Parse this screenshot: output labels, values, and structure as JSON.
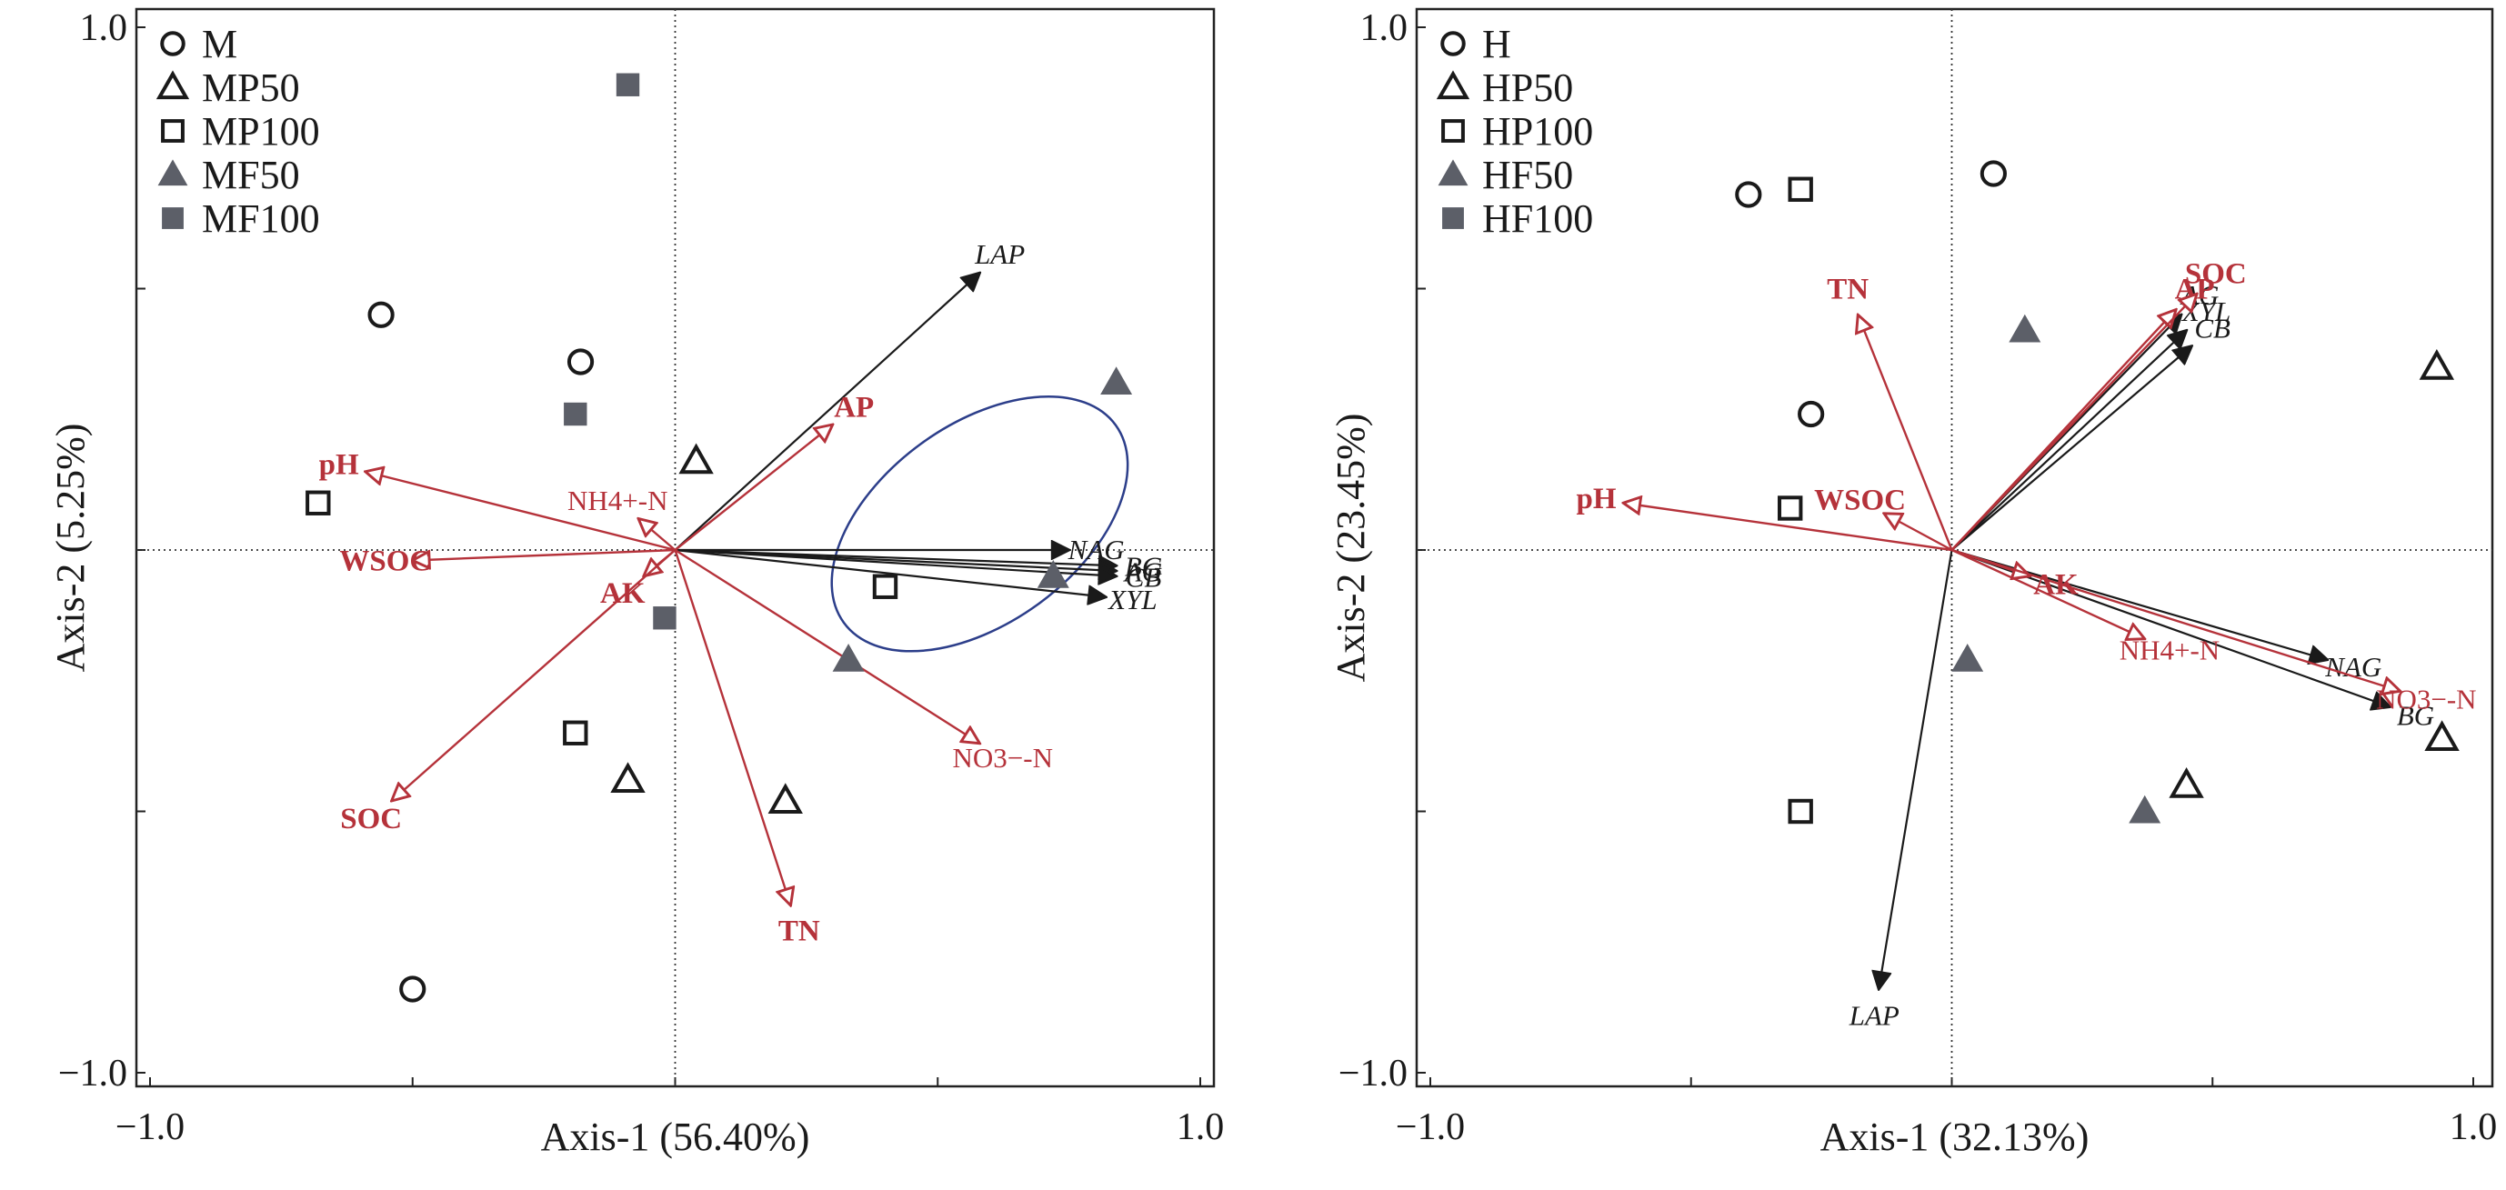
{
  "colors": {
    "env_arrow": "#b5323a",
    "enzyme_arrow": "#1a1a1a",
    "open_marker": "#1a1a1a",
    "filled_marker": "#5c5f68",
    "ellipse": "#2c3e8a",
    "frame": "#222222",
    "zero_line": "#333333"
  },
  "chart_data": [
    {
      "type": "scatter",
      "subtype": "biplot",
      "xlabel": "Axis-1 (56.40%)",
      "ylabel": "Axis-2 (5.25%)",
      "xlim": [
        -1.0,
        1.0
      ],
      "ylim": [
        -1.0,
        1.0
      ],
      "x_ticks": [
        "−1.0",
        "1.0"
      ],
      "y_ticks": [
        "1.0",
        "−1.0"
      ],
      "zero_lines": true,
      "legend_position": "top-left",
      "legend": [
        {
          "name": "M",
          "marker": "circle"
        },
        {
          "name": "MP50",
          "marker": "triangle"
        },
        {
          "name": "MP100",
          "marker": "square"
        },
        {
          "name": "MF50",
          "marker": "triangle-filled"
        },
        {
          "name": "MF100",
          "marker": "square-filled"
        }
      ],
      "points": [
        {
          "group": "M",
          "x": -0.56,
          "y": 0.45
        },
        {
          "group": "M",
          "x": -0.18,
          "y": 0.36
        },
        {
          "group": "M",
          "x": -0.5,
          "y": -0.84
        },
        {
          "group": "MP50",
          "x": 0.04,
          "y": 0.17
        },
        {
          "group": "MP50",
          "x": -0.09,
          "y": -0.44
        },
        {
          "group": "MP50",
          "x": 0.21,
          "y": -0.48
        },
        {
          "group": "MP100",
          "x": -0.68,
          "y": 0.09
        },
        {
          "group": "MP100",
          "x": 0.4,
          "y": -0.07
        },
        {
          "group": "MP100",
          "x": -0.19,
          "y": -0.35
        },
        {
          "group": "MF50",
          "x": 0.84,
          "y": 0.32
        },
        {
          "group": "MF50",
          "x": 0.72,
          "y": -0.05
        },
        {
          "group": "MF50",
          "x": 0.33,
          "y": -0.21
        },
        {
          "group": "MF100",
          "x": -0.09,
          "y": 0.89
        },
        {
          "group": "MF100",
          "x": -0.19,
          "y": 0.26
        },
        {
          "group": "MF100",
          "x": -0.02,
          "y": -0.13
        }
      ],
      "env_vectors": [
        {
          "label": "pH",
          "sup": "",
          "x": -0.59,
          "y": 0.15
        },
        {
          "label": "WSOC",
          "sup": "",
          "x": -0.5,
          "y": -0.02
        },
        {
          "label": "AK",
          "sup": "",
          "x": -0.06,
          "y": -0.05
        },
        {
          "label": "SOC",
          "sup": "",
          "x": -0.54,
          "y": -0.48
        },
        {
          "label": "AP",
          "sup": "",
          "x": 0.3,
          "y": 0.24
        },
        {
          "label": "TN",
          "sup": "",
          "x": 0.22,
          "y": -0.68
        },
        {
          "label": "NH4+-N",
          "sub": "4",
          "sup": "+",
          "x": -0.07,
          "y": 0.06
        },
        {
          "label": "NO3−-N",
          "sub": "3",
          "sup": "−",
          "x": 0.58,
          "y": -0.37
        }
      ],
      "enzyme_vectors": [
        {
          "label": "LAP",
          "x": 0.58,
          "y": 0.53
        },
        {
          "label": "NAG",
          "x": 0.75,
          "y": 0.0
        },
        {
          "label": "BG",
          "x": 0.84,
          "y": -0.03
        },
        {
          "label": "AG",
          "x": 0.84,
          "y": -0.04
        },
        {
          "label": "CB",
          "x": 0.84,
          "y": -0.05
        },
        {
          "label": "XYL",
          "x": 0.82,
          "y": -0.09
        }
      ],
      "ellipse": {
        "cx": 0.58,
        "cy": 0.05,
        "rx": 0.32,
        "ry": 0.19,
        "angle_deg": -36
      }
    },
    {
      "type": "scatter",
      "subtype": "biplot",
      "xlabel": "Axis-1 (32.13%)",
      "ylabel": "Axis-2 (23.45%)",
      "xlim": [
        -1.0,
        1.0
      ],
      "ylim": [
        -1.0,
        1.0
      ],
      "x_ticks": [
        "−1.0",
        "1.0"
      ],
      "y_ticks": [
        "1.0",
        "−1.0"
      ],
      "zero_lines": true,
      "legend_position": "top-left",
      "legend": [
        {
          "name": "H",
          "marker": "circle"
        },
        {
          "name": "HP50",
          "marker": "triangle"
        },
        {
          "name": "HP100",
          "marker": "square"
        },
        {
          "name": "HF50",
          "marker": "triangle-filled"
        },
        {
          "name": "HF100",
          "marker": "square-filled"
        }
      ],
      "points": [
        {
          "group": "H",
          "x": -0.39,
          "y": 0.68
        },
        {
          "group": "H",
          "x": 0.08,
          "y": 0.72
        },
        {
          "group": "H",
          "x": -0.27,
          "y": 0.26
        },
        {
          "group": "HP50",
          "x": 0.93,
          "y": 0.35
        },
        {
          "group": "HP50",
          "x": 0.45,
          "y": -0.45
        },
        {
          "group": "HP50",
          "x": 0.94,
          "y": -0.36
        },
        {
          "group": "HP100",
          "x": -0.29,
          "y": 0.69
        },
        {
          "group": "HP100",
          "x": -0.31,
          "y": 0.08
        },
        {
          "group": "HP100",
          "x": -0.29,
          "y": -0.5
        },
        {
          "group": "HF50",
          "x": 0.14,
          "y": 0.42
        },
        {
          "group": "HF50",
          "x": 0.03,
          "y": -0.21
        },
        {
          "group": "HF50",
          "x": 0.37,
          "y": -0.5
        }
      ],
      "env_vectors": [
        {
          "label": "pH",
          "sup": "",
          "x": -0.63,
          "y": 0.09
        },
        {
          "label": "WSOC",
          "sup": "",
          "x": -0.13,
          "y": 0.07
        },
        {
          "label": "TN",
          "sup": "",
          "x": -0.18,
          "y": 0.45
        },
        {
          "label": "AP",
          "sup": "",
          "x": 0.43,
          "y": 0.46
        },
        {
          "label": "SOC",
          "sup": "",
          "x": 0.47,
          "y": 0.49
        },
        {
          "label": "AK",
          "sup": "",
          "x": 0.15,
          "y": -0.05
        },
        {
          "label": "NH4+-N",
          "sub": "4",
          "sup": "+",
          "x": 0.37,
          "y": -0.17
        },
        {
          "label": "NO3−-N",
          "sub": "3",
          "sup": "−",
          "x": 0.86,
          "y": -0.27
        }
      ],
      "enzyme_vectors": [
        {
          "label": "AG",
          "x": 0.44,
          "y": 0.45
        },
        {
          "label": "XYL",
          "x": 0.45,
          "y": 0.42
        },
        {
          "label": "CB",
          "x": 0.46,
          "y": 0.39
        },
        {
          "label": "NAG",
          "x": 0.72,
          "y": -0.21
        },
        {
          "label": "BG",
          "x": 0.84,
          "y": -0.3
        },
        {
          "label": "LAP",
          "x": -0.14,
          "y": -0.84
        }
      ]
    }
  ]
}
